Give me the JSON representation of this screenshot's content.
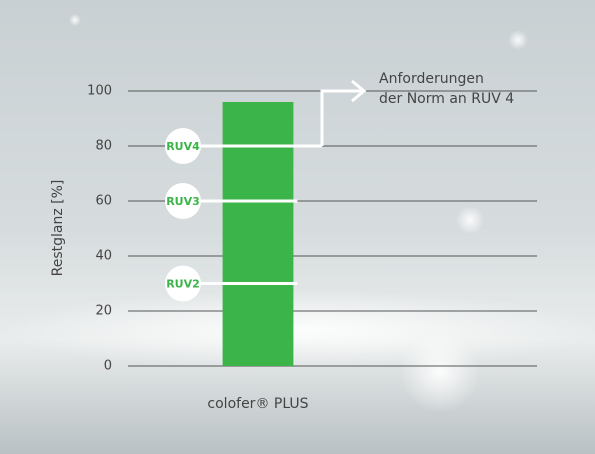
{
  "chart_data": {
    "type": "bar",
    "categories": [
      "colofer® PLUS"
    ],
    "values": [
      96
    ],
    "color": "#3bb54a",
    "y_label": "Restglanz [%]",
    "ylim": [
      0,
      100
    ],
    "yticks": [
      0,
      20,
      40,
      60,
      80,
      100
    ],
    "grid": true,
    "reference_lines": [
      {
        "label": "RUV4",
        "value": 80
      },
      {
        "label": "RUV3",
        "value": 60
      },
      {
        "label": "RUV2",
        "value": 30
      }
    ],
    "annotation": [
      "Anforderungen",
      "der Norm an RUV 4"
    ]
  }
}
